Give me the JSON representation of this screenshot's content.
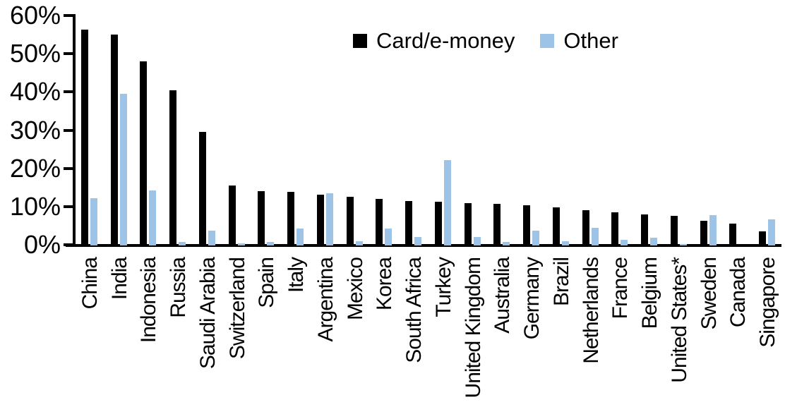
{
  "chart_data": {
    "type": "bar",
    "title": "",
    "xlabel": "",
    "ylabel": "",
    "ylim": [
      0,
      60
    ],
    "ytick_step": 10,
    "ytick_labels": [
      "0%",
      "10%",
      "20%",
      "30%",
      "40%",
      "50%",
      "60%"
    ],
    "grid": false,
    "legend_position": "top-center",
    "categories": [
      "China",
      "India",
      "Indonesia",
      "Russia",
      "Saudi Arabia",
      "Switzerland",
      "Spain",
      "Italy",
      "Argentina",
      "Mexico",
      "Korea",
      "South Africa",
      "Turkey",
      "United Kingdom",
      "Australia",
      "Germany",
      "Brazil",
      "Netherlands",
      "France",
      "Belgium",
      "United States*",
      "Sweden",
      "Canada",
      "Singapore"
    ],
    "series": [
      {
        "name": "Card/e-money",
        "color": "#000000",
        "values": [
          56.4,
          55.2,
          48.2,
          40.6,
          29.8,
          15.6,
          14.2,
          14.1,
          13.3,
          12.8,
          12.1,
          11.6,
          11.4,
          11.1,
          10.8,
          10.5,
          10.0,
          9.3,
          8.6,
          8.1,
          7.8,
          6.5,
          5.7,
          3.7
        ]
      },
      {
        "name": "Other",
        "color": "#9DC3E6",
        "values": [
          12.3,
          39.7,
          14.4,
          1.0,
          3.8,
          0.5,
          1.0,
          4.4,
          13.7,
          1.1,
          4.5,
          2.2,
          22.4,
          2.3,
          1.0,
          3.9,
          1.1,
          4.6,
          1.5,
          2.0,
          0.3,
          8.0,
          0.0,
          6.8
        ]
      }
    ]
  }
}
